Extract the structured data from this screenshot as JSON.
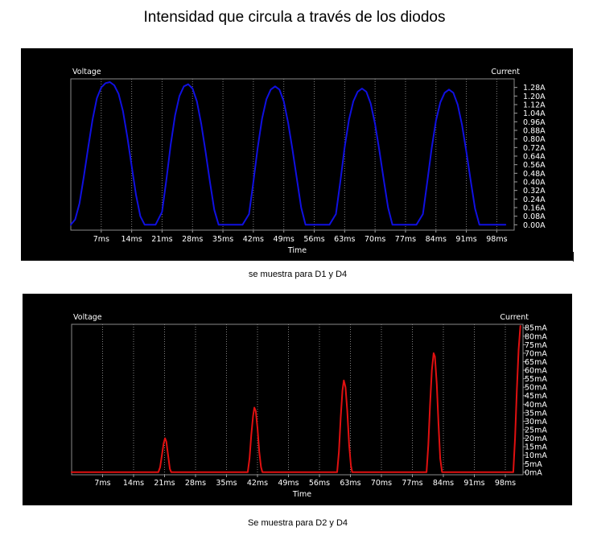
{
  "page": {
    "title": "Intensidad que circula a través de los diodos",
    "caption_top": "se muestra para D1 y D4",
    "caption_bottom": "Se muestra para D2 y D4"
  },
  "chart_data": [
    {
      "type": "line",
      "left_axis_label": "Voltage",
      "right_axis_label": "Current",
      "xlabel": "Time",
      "x_unit": "ms",
      "xlim": [
        0,
        102
      ],
      "ylim": [
        -0.05,
        1.36
      ],
      "x_ticks": [
        "7ms",
        "14ms",
        "21ms",
        "28ms",
        "35ms",
        "42ms",
        "49ms",
        "56ms",
        "63ms",
        "70ms",
        "77ms",
        "84ms",
        "91ms",
        "98ms"
      ],
      "y_ticks": [
        "0.00A",
        "0.08A",
        "0.16A",
        "0.24A",
        "0.32A",
        "0.40A",
        "0.48A",
        "0.56A",
        "0.64A",
        "0.72A",
        "0.80A",
        "0.88A",
        "0.96A",
        "1.04A",
        "1.12A",
        "1.20A",
        "1.28A"
      ],
      "grid": true,
      "series": [
        {
          "color": "#1010e0",
          "points": [
            [
              0,
              0
            ],
            [
              1,
              0.05
            ],
            [
              2,
              0.2
            ],
            [
              3,
              0.45
            ],
            [
              4,
              0.72
            ],
            [
              5,
              0.98
            ],
            [
              6,
              1.18
            ],
            [
              7,
              1.28
            ],
            [
              8,
              1.32
            ],
            [
              9,
              1.33
            ],
            [
              10,
              1.3
            ],
            [
              11,
              1.22
            ],
            [
              12,
              1.06
            ],
            [
              13,
              0.82
            ],
            [
              14,
              0.55
            ],
            [
              15,
              0.28
            ],
            [
              16,
              0.08
            ],
            [
              17,
              0
            ],
            [
              18,
              0
            ],
            [
              19.5,
              0
            ],
            [
              21,
              0.12
            ],
            [
              22,
              0.42
            ],
            [
              23,
              0.75
            ],
            [
              24,
              1.02
            ],
            [
              25,
              1.2
            ],
            [
              26,
              1.29
            ],
            [
              27,
              1.31
            ],
            [
              28,
              1.27
            ],
            [
              29,
              1.15
            ],
            [
              30,
              0.94
            ],
            [
              31,
              0.68
            ],
            [
              32,
              0.4
            ],
            [
              33,
              0.14
            ],
            [
              34,
              0
            ],
            [
              35,
              0
            ],
            [
              39.5,
              0
            ],
            [
              41,
              0.1
            ],
            [
              42,
              0.4
            ],
            [
              43,
              0.72
            ],
            [
              44,
              0.99
            ],
            [
              45,
              1.17
            ],
            [
              46,
              1.26
            ],
            [
              47,
              1.29
            ],
            [
              48,
              1.26
            ],
            [
              49,
              1.15
            ],
            [
              50,
              0.95
            ],
            [
              51,
              0.7
            ],
            [
              52,
              0.43
            ],
            [
              53,
              0.16
            ],
            [
              54,
              0
            ],
            [
              55,
              0
            ],
            [
              59.5,
              0
            ],
            [
              61,
              0.1
            ],
            [
              62,
              0.4
            ],
            [
              63,
              0.72
            ],
            [
              64,
              0.98
            ],
            [
              65,
              1.15
            ],
            [
              66,
              1.24
            ],
            [
              67,
              1.27
            ],
            [
              68,
              1.24
            ],
            [
              69,
              1.13
            ],
            [
              70,
              0.94
            ],
            [
              71,
              0.69
            ],
            [
              72,
              0.42
            ],
            [
              73,
              0.16
            ],
            [
              74,
              0
            ],
            [
              75,
              0
            ],
            [
              79.5,
              0
            ],
            [
              81,
              0.1
            ],
            [
              82,
              0.4
            ],
            [
              83,
              0.71
            ],
            [
              84,
              0.97
            ],
            [
              85,
              1.14
            ],
            [
              86,
              1.23
            ],
            [
              87,
              1.26
            ],
            [
              88,
              1.23
            ],
            [
              89,
              1.12
            ],
            [
              90,
              0.93
            ],
            [
              91,
              0.68
            ],
            [
              92,
              0.41
            ],
            [
              93,
              0.15
            ],
            [
              94,
              0
            ],
            [
              95,
              0
            ],
            [
              100,
              0
            ]
          ]
        }
      ]
    },
    {
      "type": "line",
      "left_axis_label": "Voltage",
      "right_axis_label": "Current",
      "xlabel": "Time",
      "x_unit": "ms",
      "xlim": [
        0,
        102
      ],
      "ylim": [
        -1.5,
        87
      ],
      "x_ticks": [
        "7ms",
        "14ms",
        "21ms",
        "28ms",
        "35ms",
        "42ms",
        "49ms",
        "56ms",
        "63ms",
        "70ms",
        "77ms",
        "84ms",
        "91ms",
        "98ms"
      ],
      "y_ticks": [
        "0mA",
        "5mA",
        "10mA",
        "15mA",
        "20mA",
        "25mA",
        "30mA",
        "35mA",
        "40mA",
        "45mA",
        "50mA",
        "55mA",
        "60mA",
        "65mA",
        "70mA",
        "75mA",
        "80mA",
        "85mA"
      ],
      "grid": true,
      "series": [
        {
          "color": "#e01010",
          "points": [
            [
              0,
              0
            ],
            [
              19.6,
              0
            ],
            [
              20,
              3
            ],
            [
              20.4,
              10
            ],
            [
              20.8,
              17
            ],
            [
              21.1,
              20
            ],
            [
              21.4,
              18
            ],
            [
              21.8,
              10
            ],
            [
              22.2,
              2
            ],
            [
              22.5,
              0
            ],
            [
              39.8,
              0
            ],
            [
              40.2,
              8
            ],
            [
              40.6,
              22
            ],
            [
              41,
              33
            ],
            [
              41.3,
              38
            ],
            [
              41.6,
              36
            ],
            [
              42,
              26
            ],
            [
              42.4,
              12
            ],
            [
              42.8,
              3
            ],
            [
              43.1,
              0
            ],
            [
              60,
              0
            ],
            [
              60.4,
              12
            ],
            [
              60.8,
              32
            ],
            [
              61.2,
              48
            ],
            [
              61.5,
              54
            ],
            [
              61.9,
              50
            ],
            [
              62.3,
              36
            ],
            [
              62.7,
              16
            ],
            [
              63.1,
              4
            ],
            [
              63.4,
              0
            ],
            [
              80.2,
              0
            ],
            [
              80.6,
              16
            ],
            [
              81,
              40
            ],
            [
              81.4,
              60
            ],
            [
              81.8,
              70
            ],
            [
              82.1,
              68
            ],
            [
              82.5,
              52
            ],
            [
              82.9,
              28
            ],
            [
              83.3,
              8
            ],
            [
              83.7,
              0
            ],
            [
              99.8,
              0
            ],
            [
              100.2,
              20
            ],
            [
              100.6,
              48
            ],
            [
              101,
              72
            ],
            [
              101.4,
              86
            ]
          ]
        }
      ]
    }
  ]
}
